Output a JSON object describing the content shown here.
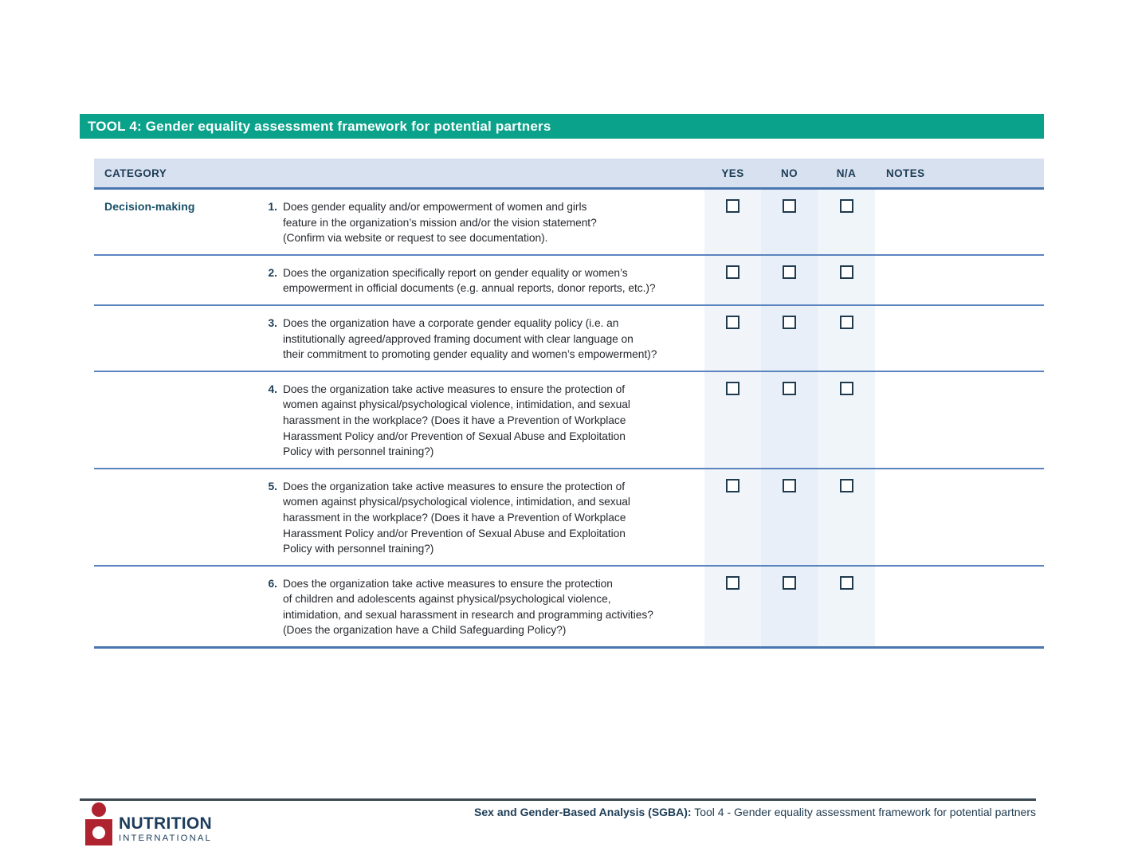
{
  "header": {
    "title": "TOOL 4: Gender equality assessment framework for potential partners"
  },
  "table": {
    "headers": {
      "category": "CATEGORY",
      "yes": "YES",
      "no": "NO",
      "na": "N/A",
      "notes": "NOTES"
    },
    "rows": [
      {
        "category": "Decision-making",
        "num": "1.",
        "question": "Does gender equality and/or empowerment of women and girls\nfeature in the organization’s mission and/or the vision statement?\n(Confirm via website or request to see documentation)."
      },
      {
        "category": "",
        "num": "2.",
        "question": "Does the organization specifically report on gender equality or women’s\nempowerment in official documents (e.g. annual reports, donor reports, etc.)?"
      },
      {
        "category": "",
        "num": "3.",
        "question": "Does the organization have a corporate gender equality policy (i.e. an\ninstitutionally agreed/approved framing document with clear language on\ntheir commitment to promoting gender equality and women’s empowerment)?"
      },
      {
        "category": "",
        "num": "4.",
        "question": "Does the organization take active measures to ensure the protection of\nwomen against physical/psychological violence, intimidation, and sexual\nharassment in the workplace? (Does it have a Prevention of Workplace\nHarassment Policy and/or Prevention of Sexual Abuse and Exploitation\nPolicy with personnel training?)"
      },
      {
        "category": "",
        "num": "5.",
        "question": "Does the organization take active measures to ensure the protection of\nwomen against physical/psychological violence, intimidation, and sexual\nharassment in the workplace? (Does it have a Prevention of Workplace\nHarassment Policy and/or Prevention of Sexual Abuse and Exploitation\nPolicy with personnel training?)"
      },
      {
        "category": "",
        "num": "6.",
        "question": "Does the organization take active measures to ensure the protection\nof children and adolescents against physical/psychological violence,\nintimidation, and sexual harassment in research and programming activities?\n(Does the organization have a Child Safeguarding Policy?)"
      }
    ]
  },
  "footer": {
    "logo_line1": "NUTRITION",
    "logo_line2": "INTERNATIONAL",
    "doc_label_bold": "Sex and Gender-Based Analysis (SGBA):",
    "doc_label_rest": " Tool 4 - Gender equality assessment framework for potential partners"
  },
  "colors": {
    "accent_teal": "#0aa28a",
    "navy": "#1d3d56",
    "category_teal": "#174e66",
    "divider_blue": "#5b84bf",
    "header_row_bg": "#d8e1f0",
    "logo_red": "#af2330"
  }
}
